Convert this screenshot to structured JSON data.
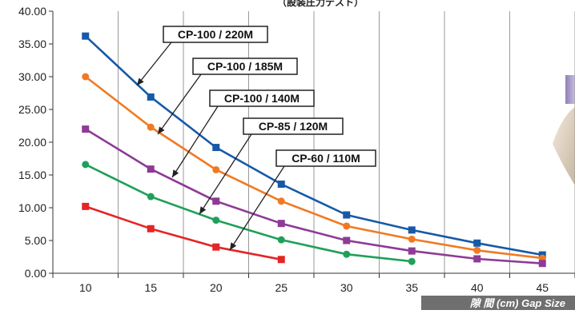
{
  "chart_data": {
    "type": "line",
    "title": "（設装圧力テスト）",
    "x_axis_label": "隙 間 (cm) Gap Size",
    "x": [
      10,
      15,
      20,
      25,
      30,
      35,
      40,
      45
    ],
    "ylim": [
      0,
      40
    ],
    "y_ticks": [
      "0.00",
      "5.00",
      "10.00",
      "15.00",
      "20.00",
      "25.00",
      "30.00",
      "35.00",
      "40.00"
    ],
    "x_ticks": [
      "10",
      "15",
      "20",
      "25",
      "30",
      "35",
      "40",
      "45"
    ],
    "grid": "vertical",
    "series": [
      {
        "name": "CP-100 / 220M",
        "color": "#1659a8",
        "marker": "square",
        "x": [
          10,
          15,
          20,
          25,
          30,
          35,
          40,
          45
        ],
        "values": [
          36.2,
          26.9,
          19.2,
          13.6,
          8.9,
          6.6,
          4.6,
          2.8
        ]
      },
      {
        "name": "CP-100 / 185M",
        "color": "#f07a24",
        "marker": "circle",
        "x": [
          10,
          15,
          20,
          25,
          30,
          35,
          40,
          45
        ],
        "values": [
          30.0,
          22.3,
          15.8,
          11.0,
          7.2,
          5.2,
          3.5,
          2.3
        ]
      },
      {
        "name": "CP-100 / 140M",
        "color": "#8e3a96",
        "marker": "square",
        "x": [
          10,
          15,
          20,
          25,
          30,
          35,
          40,
          45
        ],
        "values": [
          22.0,
          15.9,
          11.0,
          7.6,
          5.0,
          3.4,
          2.2,
          1.5
        ]
      },
      {
        "name": "CP-85 / 120M",
        "color": "#1fa05a",
        "marker": "circle",
        "x": [
          10,
          15,
          20,
          25,
          30,
          35
        ],
        "values": [
          16.6,
          11.7,
          8.1,
          5.1,
          2.9,
          1.8
        ]
      },
      {
        "name": "CP-60 / 110M",
        "color": "#e32526",
        "marker": "square",
        "x": [
          10,
          15,
          20,
          25
        ],
        "values": [
          10.2,
          6.8,
          4.0,
          2.1
        ]
      }
    ],
    "annotations": [
      {
        "series": 0,
        "text": "CP-100 / 220M"
      },
      {
        "series": 1,
        "text": "CP-100 / 185M"
      },
      {
        "series": 2,
        "text": "CP-100 / 140M"
      },
      {
        "series": 3,
        "text": "CP-85 / 120M"
      },
      {
        "series": 4,
        "text": "CP-60 / 110M"
      }
    ]
  }
}
